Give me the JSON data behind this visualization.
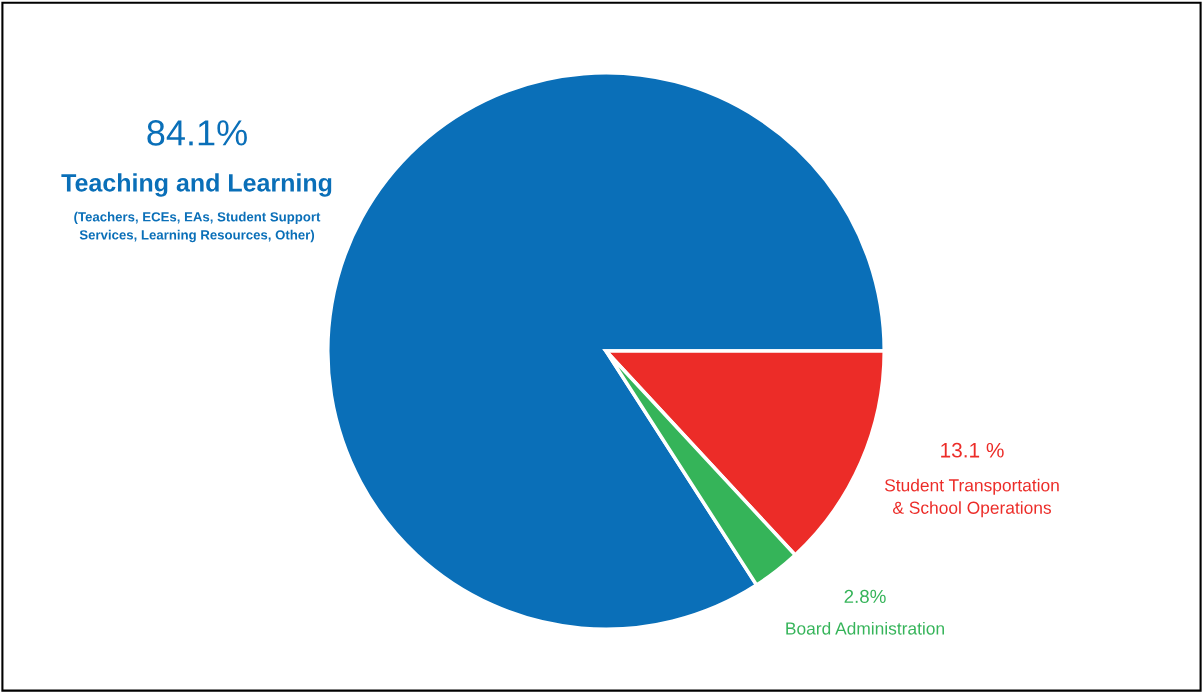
{
  "chart_data": {
    "type": "pie",
    "categories": [
      "Teaching and Learning",
      "Student Transportation\n& School Operations",
      "Board Administration"
    ],
    "values": [
      84.1,
      13.1,
      2.8
    ],
    "colors": [
      "#0a6fb8",
      "#ec2c28",
      "#35b459"
    ],
    "value_labels": [
      "84.1%",
      "13.1 %",
      "2.8%"
    ],
    "annotations": [
      "(Teachers, ECEs, EAs, Student Support\nServices, Learning Resources, Other)"
    ],
    "legend": false
  }
}
